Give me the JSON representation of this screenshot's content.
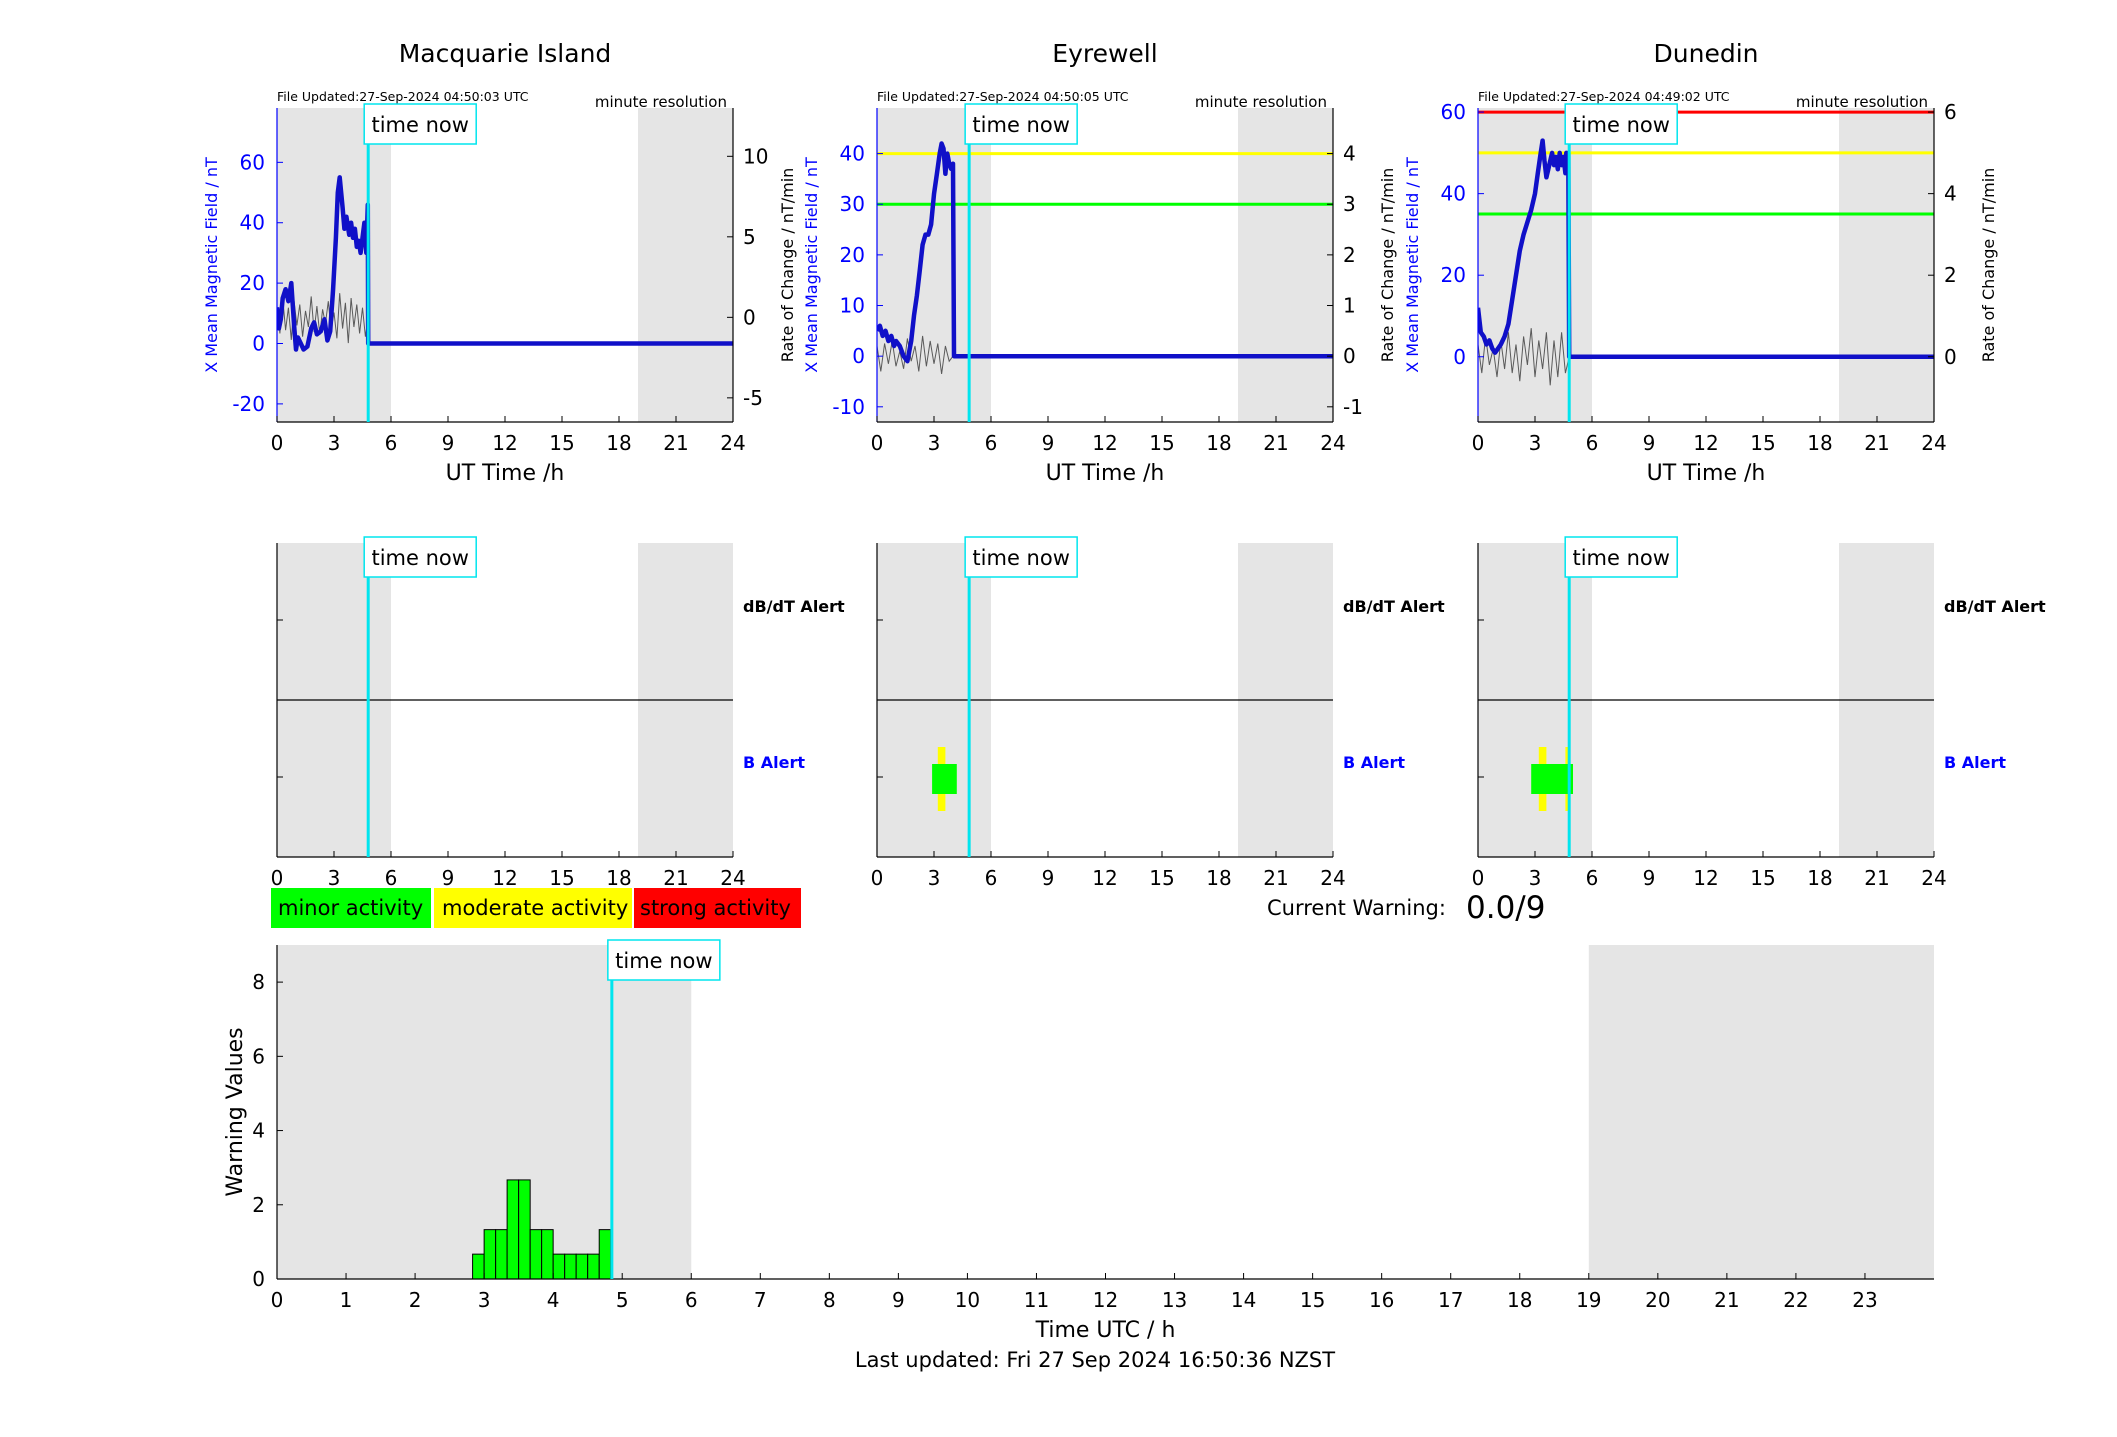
{
  "colors": {
    "blue": "#0000ff",
    "navy": "#1010c8",
    "cyan": "#00e5ee",
    "grey": "#e5e5e5",
    "green": "#00ff00",
    "yellow": "#ffff00",
    "red": "#ff0000",
    "rate": "#5a5a5a"
  },
  "common": {
    "minute_res": "minute resolution",
    "time_now": "time now",
    "x_label": "UT Time /h",
    "y_left_label": "X Mean Magnetic Field / nT",
    "y_right_label": "Rate of Change / nT/min",
    "dbdt_label": "dB/dT Alert",
    "b_label": "B Alert"
  },
  "legend": {
    "minor": "minor activity",
    "moderate": "moderate activity",
    "strong": "strong activity"
  },
  "current_warning": {
    "label": "Current Warning:",
    "value": "0.0/9"
  },
  "footer": {
    "last_updated": "Last updated: Fri 27 Sep 2024 16:50:36 NZST"
  },
  "chart_data": [
    {
      "type": "line",
      "title": "Macquarie Island",
      "file_updated": "File Updated:27-Sep-2024 04:50:03 UTC",
      "xlim": [
        0,
        24
      ],
      "x_ticks": [
        0,
        3,
        6,
        9,
        12,
        15,
        18,
        21,
        24
      ],
      "ylim_left": [
        -26,
        78
      ],
      "y_ticks_left": [
        -20,
        0,
        20,
        40,
        60
      ],
      "ylim_right": [
        -6.5,
        13.0
      ],
      "y_ticks_right": [
        -5,
        0,
        5,
        10
      ],
      "right_zero_label": "0",
      "shaded_hours": [
        [
          0,
          6
        ],
        [
          19,
          24
        ]
      ],
      "time_now": 4.8,
      "thresholds": [],
      "x_mean": {
        "x": [
          0,
          0.1,
          0.2,
          0.3,
          0.45,
          0.6,
          0.75,
          0.9,
          1.0,
          1.1,
          1.25,
          1.4,
          1.6,
          1.8,
          1.95,
          2.1,
          2.3,
          2.5,
          2.65,
          2.8,
          2.95,
          3.1,
          3.2,
          3.3,
          3.45,
          3.55,
          3.65,
          3.8,
          3.9,
          4.0,
          4.1,
          4.2,
          4.3,
          4.4,
          4.5,
          4.6,
          4.7,
          4.78,
          4.8,
          24
        ],
        "y": [
          12,
          5,
          8,
          15,
          18,
          14,
          20,
          6,
          -2,
          2,
          0,
          -2,
          -1,
          5,
          7,
          3,
          4,
          8,
          1,
          4,
          18,
          35,
          50,
          55,
          45,
          38,
          42,
          36,
          40,
          35,
          38,
          32,
          34,
          30,
          35,
          40,
          30,
          46,
          0,
          0
        ]
      },
      "rate_of_change": {
        "x": [
          0,
          0.15,
          0.3,
          0.45,
          0.6,
          0.75,
          0.9,
          1.05,
          1.2,
          1.35,
          1.5,
          1.65,
          1.8,
          1.95,
          2.1,
          2.25,
          2.4,
          2.55,
          2.7,
          2.85,
          3.0,
          3.15,
          3.3,
          3.45,
          3.6,
          3.75,
          3.9,
          4.05,
          4.2,
          4.35,
          4.5,
          4.65,
          4.8
        ],
        "y": [
          0.5,
          -1.0,
          1.2,
          -0.8,
          0.6,
          -1.4,
          1.0,
          -0.5,
          0.8,
          -1.2,
          0.4,
          -0.6,
          1.3,
          -0.9,
          0.7,
          -1.1,
          0.5,
          -0.4,
          1.0,
          -0.8,
          0.3,
          -1.3,
          1.5,
          -0.7,
          0.9,
          -1.6,
          1.2,
          -0.6,
          0.8,
          -1.0,
          0.6,
          -1.2,
          0
        ]
      }
    },
    {
      "type": "line",
      "title": "Eyrewell",
      "file_updated": "File Updated:27-Sep-2024 04:50:05 UTC",
      "xlim": [
        0,
        24
      ],
      "x_ticks": [
        0,
        3,
        6,
        9,
        12,
        15,
        18,
        21,
        24
      ],
      "ylim_left": [
        -13,
        49
      ],
      "y_ticks_left": [
        -10,
        0,
        10,
        20,
        30,
        40
      ],
      "ylim_right": [
        -1.3,
        4.9
      ],
      "y_ticks_right": [
        -1,
        0,
        1,
        2,
        3,
        4
      ],
      "right_zero_label": "0",
      "shaded_hours": [
        [
          0,
          6
        ],
        [
          19,
          24
        ]
      ],
      "time_now": 4.85,
      "thresholds": [
        {
          "value": 40,
          "color": "yellow"
        },
        {
          "value": 30,
          "color": "green"
        }
      ],
      "x_mean": {
        "x": [
          0,
          0.15,
          0.3,
          0.45,
          0.6,
          0.75,
          0.9,
          1.0,
          1.2,
          1.4,
          1.6,
          1.8,
          1.95,
          2.1,
          2.25,
          2.4,
          2.55,
          2.7,
          2.85,
          3.0,
          3.15,
          3.3,
          3.4,
          3.5,
          3.6,
          3.7,
          3.8,
          3.9,
          4.0,
          4.05,
          4.1,
          24
        ],
        "y": [
          5,
          6,
          4,
          5,
          3,
          4,
          2,
          3,
          2,
          0,
          -1,
          3,
          8,
          12,
          17,
          22,
          24,
          24,
          26,
          32,
          36,
          40,
          42,
          41,
          36,
          40,
          38,
          37,
          38,
          0,
          0,
          0
        ]
      },
      "rate_of_change": {
        "x": [
          0,
          0.2,
          0.4,
          0.6,
          0.8,
          1.0,
          1.2,
          1.4,
          1.6,
          1.8,
          2.0,
          2.2,
          2.4,
          2.6,
          2.8,
          3.0,
          3.2,
          3.4,
          3.6,
          3.8,
          4.0
        ],
        "y": [
          0.2,
          -0.3,
          0.25,
          -0.15,
          0.3,
          -0.2,
          0.1,
          -0.25,
          0.35,
          -0.1,
          0.2,
          -0.3,
          0.4,
          -0.2,
          0.3,
          -0.15,
          0.25,
          -0.35,
          0.2,
          -0.1,
          0
        ]
      }
    },
    {
      "type": "line",
      "title": "Dunedin",
      "file_updated": "File Updated:27-Sep-2024 04:49:02 UTC",
      "xlim": [
        0,
        24
      ],
      "x_ticks": [
        0,
        3,
        6,
        9,
        12,
        15,
        18,
        21,
        24
      ],
      "ylim_left": [
        -16,
        61
      ],
      "y_ticks_left": [
        0,
        20,
        40,
        60
      ],
      "ylim_right": [
        -1.6,
        6.1
      ],
      "y_ticks_right": [
        0,
        2,
        4,
        6
      ],
      "right_zero_label": "0",
      "shaded_hours": [
        [
          0,
          6
        ],
        [
          19,
          24
        ]
      ],
      "time_now": 4.8,
      "thresholds": [
        {
          "value": 60,
          "color": "red"
        },
        {
          "value": 50,
          "color": "yellow"
        },
        {
          "value": 35,
          "color": "green"
        }
      ],
      "x_mean": {
        "x": [
          0,
          0.15,
          0.3,
          0.45,
          0.6,
          0.75,
          0.9,
          1.05,
          1.2,
          1.4,
          1.6,
          1.8,
          2.0,
          2.2,
          2.4,
          2.6,
          2.8,
          3.0,
          3.15,
          3.3,
          3.4,
          3.5,
          3.6,
          3.7,
          3.8,
          3.9,
          4.0,
          4.1,
          4.2,
          4.3,
          4.4,
          4.5,
          4.6,
          4.65,
          4.7,
          4.75,
          4.8,
          24
        ],
        "y": [
          12,
          6,
          5,
          3,
          4,
          2,
          1,
          2,
          3,
          5,
          8,
          14,
          20,
          26,
          30,
          33,
          36,
          40,
          45,
          50,
          53,
          48,
          44,
          46,
          48,
          50,
          47,
          49,
          46,
          50,
          47,
          49,
          45,
          50,
          48,
          50,
          0,
          0
        ]
      },
      "rate_of_change": {
        "x": [
          0,
          0.2,
          0.4,
          0.6,
          0.8,
          1.0,
          1.2,
          1.4,
          1.6,
          1.8,
          2.0,
          2.2,
          2.4,
          2.6,
          2.8,
          3.0,
          3.2,
          3.4,
          3.6,
          3.8,
          4.0,
          4.2,
          4.4,
          4.6,
          4.8
        ],
        "y": [
          0.3,
          -0.4,
          0.5,
          -0.2,
          0.2,
          -0.5,
          0.4,
          -0.3,
          0.6,
          -0.4,
          0.3,
          -0.6,
          0.5,
          -0.2,
          0.7,
          -0.5,
          0.4,
          -0.3,
          0.6,
          -0.7,
          0.4,
          -0.5,
          0.6,
          -0.4,
          0
        ]
      }
    },
    {
      "type": "alert",
      "title": "Macquarie Island",
      "xlim": [
        0,
        24
      ],
      "x_ticks": [
        0,
        3,
        6,
        9,
        12,
        15,
        18,
        21,
        24
      ],
      "shaded_hours": [
        [
          0,
          6
        ],
        [
          19,
          24
        ]
      ],
      "time_now": 4.8,
      "b_alert": []
    },
    {
      "type": "alert",
      "title": "Eyrewell",
      "xlim": [
        0,
        24
      ],
      "x_ticks": [
        0,
        3,
        6,
        9,
        12,
        15,
        18,
        21,
        24
      ],
      "shaded_hours": [
        [
          0,
          6
        ],
        [
          19,
          24
        ]
      ],
      "time_now": 4.85,
      "b_alert": [
        {
          "start": 3.2,
          "end": 3.6,
          "level": "yellow"
        },
        {
          "start": 2.9,
          "end": 4.2,
          "level": "green"
        }
      ]
    },
    {
      "type": "alert",
      "title": "Dunedin",
      "xlim": [
        0,
        24
      ],
      "x_ticks": [
        0,
        3,
        6,
        9,
        12,
        15,
        18,
        21,
        24
      ],
      "shaded_hours": [
        [
          0,
          6
        ],
        [
          19,
          24
        ]
      ],
      "time_now": 4.8,
      "b_alert": [
        {
          "start": 3.2,
          "end": 3.6,
          "level": "yellow"
        },
        {
          "start": 4.6,
          "end": 4.75,
          "level": "yellow"
        },
        {
          "start": 2.8,
          "end": 5.0,
          "level": "green"
        }
      ]
    },
    {
      "type": "bar",
      "xlabel": "Time UTC / h",
      "ylabel": "Warning Values",
      "xlim": [
        0,
        24
      ],
      "x_ticks": [
        0,
        1,
        2,
        3,
        4,
        5,
        6,
        7,
        8,
        9,
        10,
        11,
        12,
        13,
        14,
        15,
        16,
        17,
        18,
        19,
        20,
        21,
        22,
        23
      ],
      "ylim": [
        0,
        9
      ],
      "y_ticks": [
        0,
        2,
        4,
        6,
        8
      ],
      "shaded_hours": [
        [
          0,
          6
        ],
        [
          19,
          24
        ]
      ],
      "time_now": 4.85,
      "bar_width_h": 0.1667,
      "bar_starts": [
        2.833,
        3.0,
        3.167,
        3.333,
        3.5,
        3.667,
        3.833,
        4.0,
        4.167,
        4.333,
        4.5,
        4.667
      ],
      "values": [
        0.67,
        1.33,
        1.33,
        2.67,
        2.67,
        1.33,
        1.33,
        0.67,
        0.67,
        0.67,
        0.67,
        1.33
      ]
    }
  ]
}
